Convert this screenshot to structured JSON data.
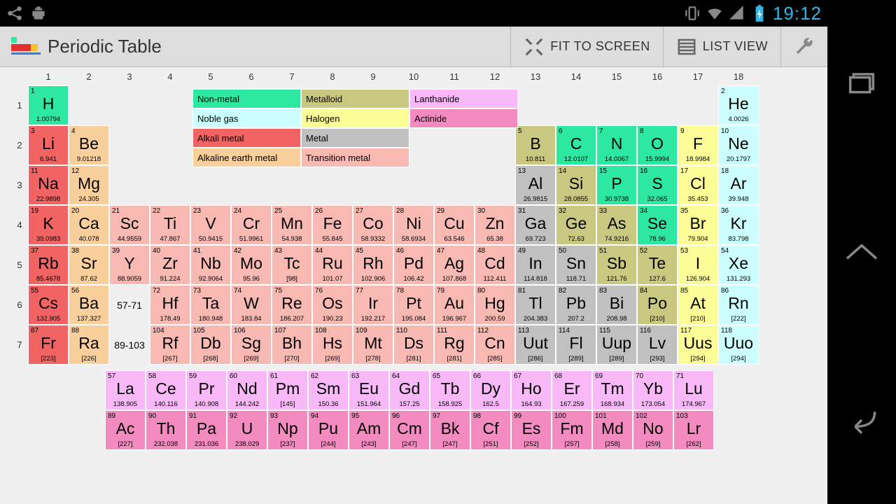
{
  "status": {
    "time": "19:12"
  },
  "actionbar": {
    "title": "Periodic Table",
    "fit_label": "FIT TO SCREEN",
    "list_label": "LIST VIEW"
  },
  "col_labels": [
    "1",
    "2",
    "3",
    "4",
    "5",
    "6",
    "7",
    "8",
    "9",
    "10",
    "11",
    "12",
    "13",
    "14",
    "15",
    "16",
    "17",
    "18"
  ],
  "row_labels": [
    "1",
    "2",
    "3",
    "4",
    "5",
    "6",
    "7"
  ],
  "legend": {
    "rows": [
      [
        {
          "label": "Non-metal",
          "k": "nonmetal"
        },
        {
          "label": "Metalloid",
          "k": "metalloid"
        },
        {
          "label": "Lanthanide",
          "k": "lanthanide"
        }
      ],
      [
        {
          "label": "Noble gas",
          "k": "noble"
        },
        {
          "label": "Halogen",
          "k": "halogen"
        },
        {
          "label": "Actinide",
          "k": "actinide"
        }
      ],
      [
        {
          "label": "Alkali metal",
          "k": "alkali"
        },
        {
          "label": "Metal",
          "k": "metal"
        }
      ],
      [
        {
          "label": "Alkaline earth metal",
          "k": "alkaline"
        },
        {
          "label": "Transition metal",
          "k": "transition"
        }
      ]
    ]
  },
  "placeholders": {
    "la": "57-71",
    "ac": "89-103"
  },
  "elements": {
    "r1": [
      {
        "n": "1",
        "s": "H",
        "m": "1.00794",
        "c": "nonmetal",
        "g": 1
      },
      {
        "n": "2",
        "s": "He",
        "m": "4.0026",
        "c": "noble",
        "g": 18
      }
    ],
    "r2": [
      {
        "n": "3",
        "s": "Li",
        "m": "6.941",
        "c": "alkali",
        "g": 1
      },
      {
        "n": "4",
        "s": "Be",
        "m": "9.01218",
        "c": "alkaline",
        "g": 2
      },
      {
        "n": "5",
        "s": "B",
        "m": "10.811",
        "c": "metalloid",
        "g": 13
      },
      {
        "n": "6",
        "s": "C",
        "m": "12.0107",
        "c": "nonmetal",
        "g": 14
      },
      {
        "n": "7",
        "s": "N",
        "m": "14.0067",
        "c": "nonmetal",
        "g": 15
      },
      {
        "n": "8",
        "s": "O",
        "m": "15.9994",
        "c": "nonmetal",
        "g": 16
      },
      {
        "n": "9",
        "s": "F",
        "m": "18.9984",
        "c": "halogen",
        "g": 17
      },
      {
        "n": "10",
        "s": "Ne",
        "m": "20.1797",
        "c": "noble",
        "g": 18
      }
    ],
    "r3": [
      {
        "n": "11",
        "s": "Na",
        "m": "22.9898",
        "c": "alkali",
        "g": 1
      },
      {
        "n": "12",
        "s": "Mg",
        "m": "24.305",
        "c": "alkaline",
        "g": 2
      },
      {
        "n": "13",
        "s": "Al",
        "m": "26.9815",
        "c": "metal",
        "g": 13
      },
      {
        "n": "14",
        "s": "Si",
        "m": "28.0855",
        "c": "metalloid",
        "g": 14
      },
      {
        "n": "15",
        "s": "P",
        "m": "30.9738",
        "c": "nonmetal",
        "g": 15
      },
      {
        "n": "16",
        "s": "S",
        "m": "32.065",
        "c": "nonmetal",
        "g": 16
      },
      {
        "n": "17",
        "s": "Cl",
        "m": "35.453",
        "c": "halogen",
        "g": 17
      },
      {
        "n": "18",
        "s": "Ar",
        "m": "39.948",
        "c": "noble",
        "g": 18
      }
    ],
    "r4": [
      {
        "n": "19",
        "s": "K",
        "m": "39.0983",
        "c": "alkali",
        "g": 1
      },
      {
        "n": "20",
        "s": "Ca",
        "m": "40.078",
        "c": "alkaline",
        "g": 2
      },
      {
        "n": "21",
        "s": "Sc",
        "m": "44.9559",
        "c": "transition",
        "g": 3
      },
      {
        "n": "22",
        "s": "Ti",
        "m": "47.867",
        "c": "transition",
        "g": 4
      },
      {
        "n": "23",
        "s": "V",
        "m": "50.9415",
        "c": "transition",
        "g": 5
      },
      {
        "n": "24",
        "s": "Cr",
        "m": "51.9961",
        "c": "transition",
        "g": 6
      },
      {
        "n": "25",
        "s": "Mn",
        "m": "54.938",
        "c": "transition",
        "g": 7
      },
      {
        "n": "26",
        "s": "Fe",
        "m": "55.845",
        "c": "transition",
        "g": 8
      },
      {
        "n": "27",
        "s": "Co",
        "m": "58.9332",
        "c": "transition",
        "g": 9
      },
      {
        "n": "28",
        "s": "Ni",
        "m": "58.6934",
        "c": "transition",
        "g": 10
      },
      {
        "n": "29",
        "s": "Cu",
        "m": "63.546",
        "c": "transition",
        "g": 11
      },
      {
        "n": "30",
        "s": "Zn",
        "m": "65.38",
        "c": "transition",
        "g": 12
      },
      {
        "n": "31",
        "s": "Ga",
        "m": "69.723",
        "c": "metal",
        "g": 13
      },
      {
        "n": "32",
        "s": "Ge",
        "m": "72.63",
        "c": "metalloid",
        "g": 14
      },
      {
        "n": "33",
        "s": "As",
        "m": "74.9216",
        "c": "metalloid",
        "g": 15
      },
      {
        "n": "34",
        "s": "Se",
        "m": "78.96",
        "c": "nonmetal",
        "g": 16
      },
      {
        "n": "35",
        "s": "Br",
        "m": "79.904",
        "c": "halogen",
        "g": 17
      },
      {
        "n": "36",
        "s": "Kr",
        "m": "83.798",
        "c": "noble",
        "g": 18
      }
    ],
    "r5": [
      {
        "n": "37",
        "s": "Rb",
        "m": "85.4678",
        "c": "alkali",
        "g": 1
      },
      {
        "n": "38",
        "s": "Sr",
        "m": "87.62",
        "c": "alkaline",
        "g": 2
      },
      {
        "n": "39",
        "s": "Y",
        "m": "88.9059",
        "c": "transition",
        "g": 3
      },
      {
        "n": "40",
        "s": "Zr",
        "m": "91.224",
        "c": "transition",
        "g": 4
      },
      {
        "n": "41",
        "s": "Nb",
        "m": "92.9064",
        "c": "transition",
        "g": 5
      },
      {
        "n": "42",
        "s": "Mo",
        "m": "95.96",
        "c": "transition",
        "g": 6
      },
      {
        "n": "43",
        "s": "Tc",
        "m": "[98]",
        "c": "transition",
        "g": 7
      },
      {
        "n": "44",
        "s": "Ru",
        "m": "101.07",
        "c": "transition",
        "g": 8
      },
      {
        "n": "45",
        "s": "Rh",
        "m": "102.906",
        "c": "transition",
        "g": 9
      },
      {
        "n": "46",
        "s": "Pd",
        "m": "106.42",
        "c": "transition",
        "g": 10
      },
      {
        "n": "47",
        "s": "Ag",
        "m": "107.868",
        "c": "transition",
        "g": 11
      },
      {
        "n": "48",
        "s": "Cd",
        "m": "112.411",
        "c": "transition",
        "g": 12
      },
      {
        "n": "49",
        "s": "In",
        "m": "114.818",
        "c": "metal",
        "g": 13
      },
      {
        "n": "50",
        "s": "Sn",
        "m": "118.71",
        "c": "metal",
        "g": 14
      },
      {
        "n": "51",
        "s": "Sb",
        "m": "121.76",
        "c": "metalloid",
        "g": 15
      },
      {
        "n": "52",
        "s": "Te",
        "m": "127.6",
        "c": "metalloid",
        "g": 16
      },
      {
        "n": "53",
        "s": "I",
        "m": "126.904",
        "c": "halogen",
        "g": 17
      },
      {
        "n": "54",
        "s": "Xe",
        "m": "131.293",
        "c": "noble",
        "g": 18
      }
    ],
    "r6": [
      {
        "n": "55",
        "s": "Cs",
        "m": "132.905",
        "c": "alkali",
        "g": 1
      },
      {
        "n": "56",
        "s": "Ba",
        "m": "137.327",
        "c": "alkaline",
        "g": 2
      },
      {
        "n": "72",
        "s": "Hf",
        "m": "178.49",
        "c": "transition",
        "g": 4
      },
      {
        "n": "73",
        "s": "Ta",
        "m": "180.948",
        "c": "transition",
        "g": 5
      },
      {
        "n": "74",
        "s": "W",
        "m": "183.84",
        "c": "transition",
        "g": 6
      },
      {
        "n": "75",
        "s": "Re",
        "m": "186.207",
        "c": "transition",
        "g": 7
      },
      {
        "n": "76",
        "s": "Os",
        "m": "190.23",
        "c": "transition",
        "g": 8
      },
      {
        "n": "77",
        "s": "Ir",
        "m": "192.217",
        "c": "transition",
        "g": 9
      },
      {
        "n": "78",
        "s": "Pt",
        "m": "195.084",
        "c": "transition",
        "g": 10
      },
      {
        "n": "79",
        "s": "Au",
        "m": "196.967",
        "c": "transition",
        "g": 11
      },
      {
        "n": "80",
        "s": "Hg",
        "m": "200.59",
        "c": "transition",
        "g": 12
      },
      {
        "n": "81",
        "s": "Tl",
        "m": "204.383",
        "c": "metal",
        "g": 13
      },
      {
        "n": "82",
        "s": "Pb",
        "m": "207.2",
        "c": "metal",
        "g": 14
      },
      {
        "n": "83",
        "s": "Bi",
        "m": "208.98",
        "c": "metal",
        "g": 15
      },
      {
        "n": "84",
        "s": "Po",
        "m": "[210]",
        "c": "metalloid",
        "g": 16
      },
      {
        "n": "85",
        "s": "At",
        "m": "[210]",
        "c": "halogen",
        "g": 17
      },
      {
        "n": "86",
        "s": "Rn",
        "m": "[222]",
        "c": "noble",
        "g": 18
      }
    ],
    "r7": [
      {
        "n": "87",
        "s": "Fr",
        "m": "[223]",
        "c": "alkali",
        "g": 1
      },
      {
        "n": "88",
        "s": "Ra",
        "m": "[226]",
        "c": "alkaline",
        "g": 2
      },
      {
        "n": "104",
        "s": "Rf",
        "m": "[267]",
        "c": "transition",
        "g": 4
      },
      {
        "n": "105",
        "s": "Db",
        "m": "[268]",
        "c": "transition",
        "g": 5
      },
      {
        "n": "106",
        "s": "Sg",
        "m": "[269]",
        "c": "transition",
        "g": 6
      },
      {
        "n": "107",
        "s": "Bh",
        "m": "[270]",
        "c": "transition",
        "g": 7
      },
      {
        "n": "108",
        "s": "Hs",
        "m": "[269]",
        "c": "transition",
        "g": 8
      },
      {
        "n": "109",
        "s": "Mt",
        "m": "[278]",
        "c": "transition",
        "g": 9
      },
      {
        "n": "110",
        "s": "Ds",
        "m": "[281]",
        "c": "transition",
        "g": 10
      },
      {
        "n": "111",
        "s": "Rg",
        "m": "[281]",
        "c": "transition",
        "g": 11
      },
      {
        "n": "112",
        "s": "Cn",
        "m": "[285]",
        "c": "transition",
        "g": 12
      },
      {
        "n": "113",
        "s": "Uut",
        "m": "[286]",
        "c": "metal",
        "g": 13
      },
      {
        "n": "114",
        "s": "Fl",
        "m": "[289]",
        "c": "metal",
        "g": 14
      },
      {
        "n": "115",
        "s": "Uup",
        "m": "[289]",
        "c": "metal",
        "g": 15
      },
      {
        "n": "116",
        "s": "Lv",
        "m": "[293]",
        "c": "metal",
        "g": 16
      },
      {
        "n": "117",
        "s": "Uus",
        "m": "[294]",
        "c": "halogen",
        "g": 17
      },
      {
        "n": "118",
        "s": "Uuo",
        "m": "[294]",
        "c": "noble",
        "g": 18
      }
    ],
    "la": [
      {
        "n": "57",
        "s": "La",
        "m": "138.905",
        "c": "lanthanide"
      },
      {
        "n": "58",
        "s": "Ce",
        "m": "140.116",
        "c": "lanthanide"
      },
      {
        "n": "59",
        "s": "Pr",
        "m": "140.908",
        "c": "lanthanide"
      },
      {
        "n": "60",
        "s": "Nd",
        "m": "144.242",
        "c": "lanthanide"
      },
      {
        "n": "61",
        "s": "Pm",
        "m": "[145]",
        "c": "lanthanide"
      },
      {
        "n": "62",
        "s": "Sm",
        "m": "150.36",
        "c": "lanthanide"
      },
      {
        "n": "63",
        "s": "Eu",
        "m": "151.964",
        "c": "lanthanide"
      },
      {
        "n": "64",
        "s": "Gd",
        "m": "157.25",
        "c": "lanthanide"
      },
      {
        "n": "65",
        "s": "Tb",
        "m": "158.925",
        "c": "lanthanide"
      },
      {
        "n": "66",
        "s": "Dy",
        "m": "162.5",
        "c": "lanthanide"
      },
      {
        "n": "67",
        "s": "Ho",
        "m": "164.93",
        "c": "lanthanide"
      },
      {
        "n": "68",
        "s": "Er",
        "m": "167.259",
        "c": "lanthanide"
      },
      {
        "n": "69",
        "s": "Tm",
        "m": "168.934",
        "c": "lanthanide"
      },
      {
        "n": "70",
        "s": "Yb",
        "m": "173.054",
        "c": "lanthanide"
      },
      {
        "n": "71",
        "s": "Lu",
        "m": "174.967",
        "c": "lanthanide"
      }
    ],
    "ac": [
      {
        "n": "89",
        "s": "Ac",
        "m": "[227]",
        "c": "actinide"
      },
      {
        "n": "90",
        "s": "Th",
        "m": "232.038",
        "c": "actinide"
      },
      {
        "n": "91",
        "s": "Pa",
        "m": "231.036",
        "c": "actinide"
      },
      {
        "n": "92",
        "s": "U",
        "m": "238.029",
        "c": "actinide"
      },
      {
        "n": "93",
        "s": "Np",
        "m": "[237]",
        "c": "actinide"
      },
      {
        "n": "94",
        "s": "Pu",
        "m": "[244]",
        "c": "actinide"
      },
      {
        "n": "95",
        "s": "Am",
        "m": "[243]",
        "c": "actinide"
      },
      {
        "n": "96",
        "s": "Cm",
        "m": "[247]",
        "c": "actinide"
      },
      {
        "n": "97",
        "s": "Bk",
        "m": "[247]",
        "c": "actinide"
      },
      {
        "n": "98",
        "s": "Cf",
        "m": "[251]",
        "c": "actinide"
      },
      {
        "n": "99",
        "s": "Es",
        "m": "[252]",
        "c": "actinide"
      },
      {
        "n": "100",
        "s": "Fm",
        "m": "[257]",
        "c": "actinide"
      },
      {
        "n": "101",
        "s": "Md",
        "m": "[258]",
        "c": "actinide"
      },
      {
        "n": "102",
        "s": "No",
        "m": "[259]",
        "c": "actinide"
      },
      {
        "n": "103",
        "s": "Lr",
        "m": "[262]",
        "c": "actinide"
      }
    ]
  },
  "colors": {
    "nonmetal": "#2ce8a0",
    "noble": "#ccffff",
    "alkali": "#f26464",
    "alkaline": "#f9cf9c",
    "metalloid": "#c9c880",
    "halogen": "#fdfd98",
    "metal": "#c0c0c0",
    "transition": "#f9b9b3",
    "lanthanide": "#f9b9f9",
    "actinide": "#f48bc0"
  }
}
